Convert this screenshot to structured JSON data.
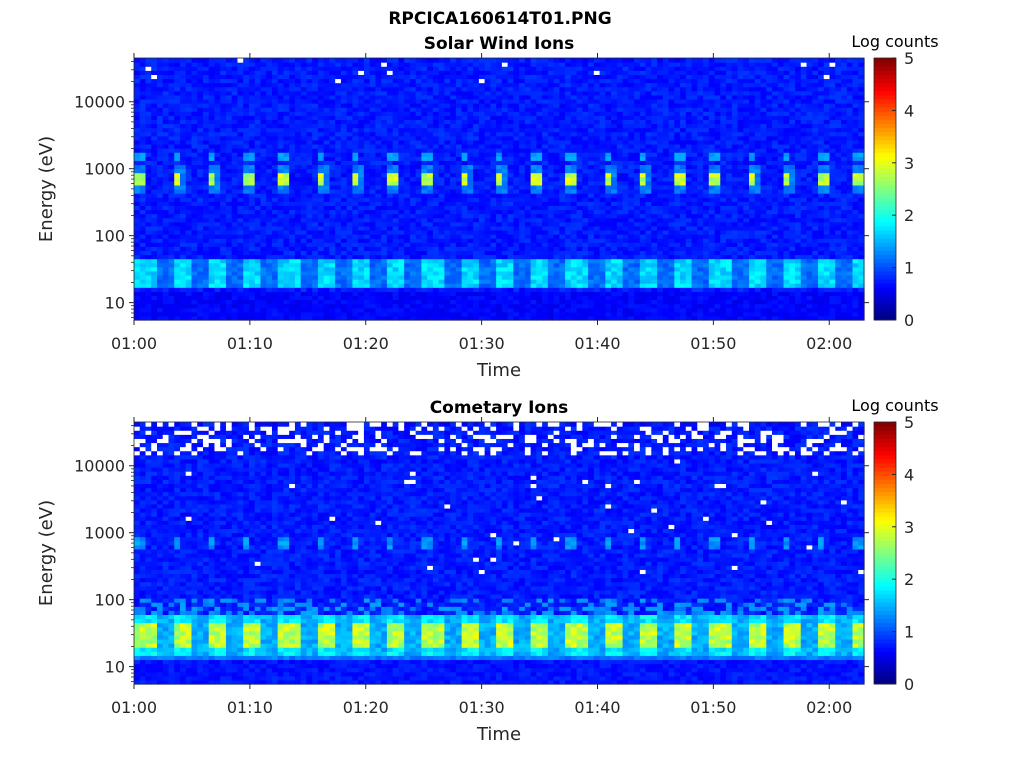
{
  "figure_title": "RPCICA160614T01.PNG",
  "chart_data": [
    {
      "type": "heatmap",
      "title": "Solar Wind Ions",
      "xlabel": "Time",
      "ylabel": "Energy (eV)",
      "x_ticks": [
        "01:00",
        "01:10",
        "01:20",
        "01:30",
        "01:40",
        "01:50",
        "02:00"
      ],
      "x_range_minutes": [
        0,
        63
      ],
      "y_scale": "log",
      "y_ticks": [
        "10",
        "100",
        "1000",
        "10000"
      ],
      "y_range": [
        5.5,
        45000
      ],
      "colorbar": {
        "label": "Log counts",
        "ticks": [
          "0",
          "1",
          "2",
          "3",
          "4",
          "5"
        ],
        "range": [
          0,
          5
        ],
        "colormap": "jet"
      },
      "features": {
        "low_energy_band": {
          "energy_range": [
            17,
            45
          ],
          "log_counts": 1.6,
          "period_minutes": 3.1
        },
        "mid_band_1600eV": {
          "energy_range": [
            1400,
            1800
          ],
          "log_counts": 1.3
        },
        "peak_band_700eV": {
          "energy_range": [
            550,
            900
          ],
          "log_counts": 2.9,
          "period_minutes": 3.1
        }
      }
    },
    {
      "type": "heatmap",
      "title": "Cometary Ions",
      "xlabel": "Time",
      "ylabel": "Energy (eV)",
      "x_ticks": [
        "01:00",
        "01:10",
        "01:20",
        "01:30",
        "01:40",
        "01:50",
        "02:00"
      ],
      "x_range_minutes": [
        0,
        63
      ],
      "y_scale": "log",
      "y_ticks": [
        "10",
        "100",
        "1000",
        "10000"
      ],
      "y_range": [
        5.5,
        45000
      ],
      "colorbar": {
        "label": "Log counts",
        "ticks": [
          "0",
          "1",
          "2",
          "3",
          "4",
          "5"
        ],
        "range": [
          0,
          5
        ],
        "colormap": "jet"
      },
      "features": {
        "low_energy_band": {
          "energy_range": [
            15,
            60
          ],
          "log_counts": 2.6,
          "period_minutes": 3.1
        },
        "peak_band_700eV": {
          "energy_range": [
            600,
            850
          ],
          "log_counts": 1.3
        },
        "high_energy_gaps": {
          "energy_range": [
            15000,
            45000
          ]
        }
      }
    }
  ]
}
